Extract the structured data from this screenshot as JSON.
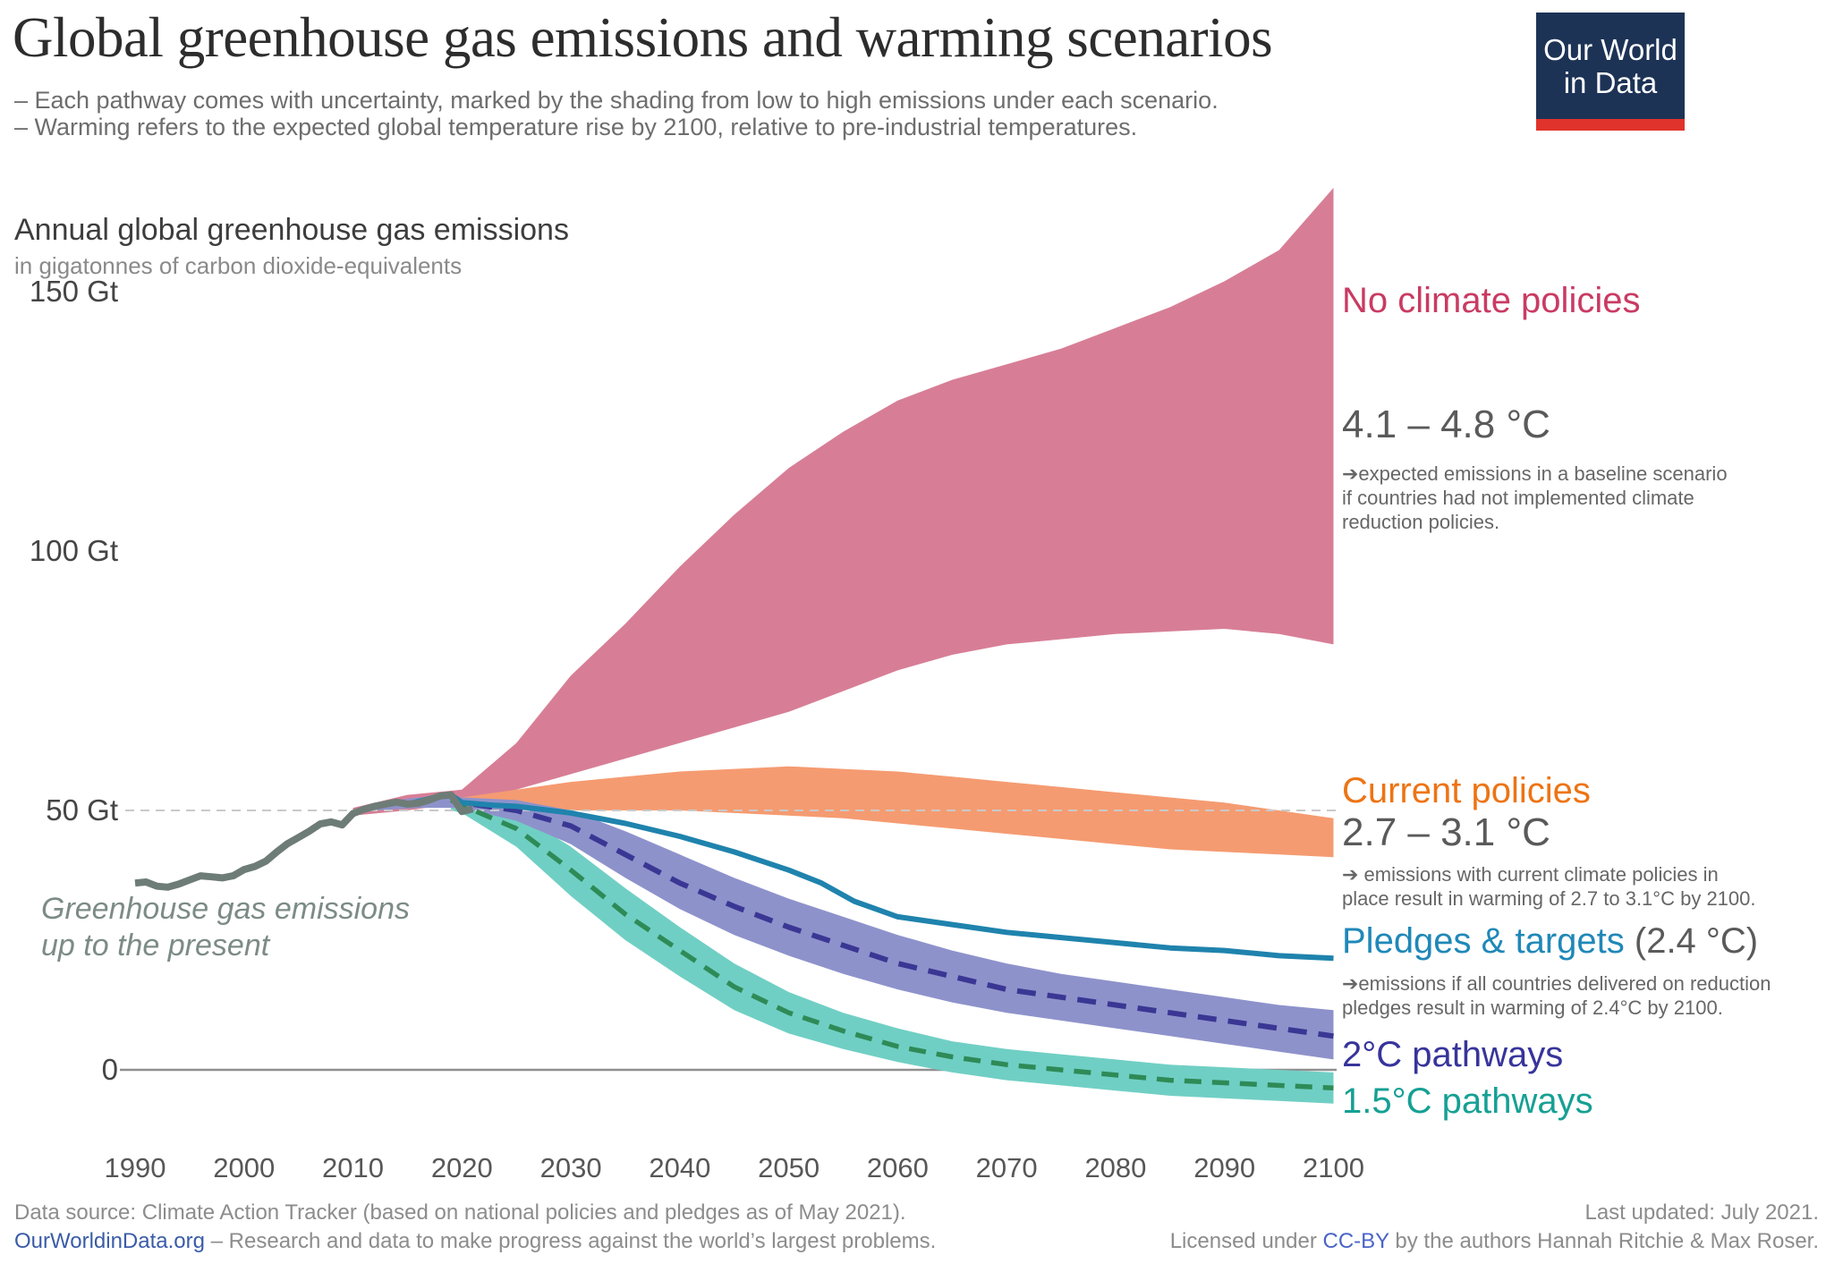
{
  "header": {
    "title": "Global greenhouse gas emissions and warming scenarios",
    "subtitle_lines": [
      "– Each pathway comes with uncertainty, marked by the shading from low to high emissions under each scenario.",
      "– Warming refers to the expected global temperature rise by 2100, relative to pre-industrial temperatures."
    ],
    "logo": {
      "line1": "Our World",
      "line2": "in Data",
      "bg_color": "#1d3356",
      "bar_color": "#e0332b"
    }
  },
  "chart": {
    "axis_heading": "Annual global greenhouse gas emissions",
    "axis_subheading": "in gigatonnes of carbon dioxide-equivalents",
    "history_annotation": "Greenhouse gas emissions\nup to the present",
    "scenarios": {
      "no_policies": {
        "label": "No climate policies",
        "temp": "4.1 – 4.8 °C",
        "note": "➔expected emissions in a baseline scenario\nif countries had not implemented climate\nreduction policies.",
        "color": "#c93b63"
      },
      "current_policies": {
        "label": "Current policies",
        "temp": "2.7 – 3.1 °C",
        "note": "➔ emissions with current climate policies in\nplace result in warming of 2.7 to 3.1°C by 2100.",
        "color": "#ed7414"
      },
      "pledges": {
        "label": "Pledges & targets",
        "temp": "(2.4 °C)",
        "note": "➔emissions if all countries delivered on reduction\npledges result in warming of 2.4°C by 2100.",
        "color": "#2088b8"
      },
      "two_degree": {
        "label": "2°C pathways",
        "color": "#37349b"
      },
      "one_five_degree": {
        "label": "1.5°C pathways",
        "color": "#16a094"
      }
    }
  },
  "chart_data": {
    "type": "area",
    "title": "Annual global greenhouse gas emissions",
    "ylabel": "gigatonnes of carbon dioxide-equivalents",
    "ylim": [
      -10,
      175
    ],
    "y_ticks": [
      {
        "value": 150,
        "label": "150 Gt"
      },
      {
        "value": 100,
        "label": "100 Gt"
      },
      {
        "value": 50,
        "label": "50 Gt"
      },
      {
        "value": 0,
        "label": "0"
      }
    ],
    "x_ticks": [
      1990,
      2000,
      2010,
      2020,
      2030,
      2040,
      2050,
      2060,
      2070,
      2080,
      2090,
      2100
    ],
    "gridline_value": 50,
    "series": [
      {
        "name": "No climate policies (range 4.1–4.8 °C)",
        "kind": "band",
        "color": "#d77e96",
        "points": [
          [
            2010,
            49,
            50.5
          ],
          [
            2015,
            50,
            53
          ],
          [
            2020,
            51.5,
            54
          ],
          [
            2025,
            54,
            63
          ],
          [
            2030,
            57,
            76
          ],
          [
            2035,
            60,
            86
          ],
          [
            2040,
            63,
            97
          ],
          [
            2045,
            66,
            107
          ],
          [
            2050,
            69,
            116
          ],
          [
            2055,
            73,
            123
          ],
          [
            2060,
            77,
            129
          ],
          [
            2065,
            80,
            133
          ],
          [
            2070,
            82,
            136
          ],
          [
            2075,
            83,
            139
          ],
          [
            2080,
            84,
            143
          ],
          [
            2085,
            84.5,
            147
          ],
          [
            2090,
            85,
            152
          ],
          [
            2095,
            84,
            158
          ],
          [
            2100,
            82,
            170
          ]
        ]
      },
      {
        "name": "Current policies (range 2.7–3.1 °C)",
        "kind": "band",
        "color": "#f59b71",
        "points": [
          [
            2020,
            51,
            52.5
          ],
          [
            2025,
            50.5,
            54
          ],
          [
            2030,
            50,
            55.5
          ],
          [
            2035,
            50,
            56.5
          ],
          [
            2040,
            50,
            57.5
          ],
          [
            2045,
            49.5,
            58
          ],
          [
            2050,
            49,
            58.5
          ],
          [
            2055,
            48.5,
            58
          ],
          [
            2060,
            47.5,
            57.5
          ],
          [
            2065,
            46.5,
            56.5
          ],
          [
            2070,
            45.5,
            55.5
          ],
          [
            2075,
            44.5,
            54.5
          ],
          [
            2080,
            43.5,
            53.5
          ],
          [
            2085,
            42.5,
            52.5
          ],
          [
            2090,
            42,
            51.5
          ],
          [
            2095,
            41.5,
            50
          ],
          [
            2100,
            41,
            48.5
          ]
        ]
      },
      {
        "name": "1.5°C pathways band",
        "kind": "band",
        "color": "#70cfc4",
        "points": [
          [
            2019,
            50,
            52
          ],
          [
            2020,
            49.5,
            52
          ],
          [
            2025,
            43,
            49.5
          ],
          [
            2030,
            33.5,
            43
          ],
          [
            2035,
            25,
            35
          ],
          [
            2040,
            18,
            27.5
          ],
          [
            2045,
            11.5,
            20.5
          ],
          [
            2050,
            7,
            15
          ],
          [
            2055,
            4,
            11
          ],
          [
            2060,
            1.5,
            8
          ],
          [
            2065,
            -0.5,
            5.5
          ],
          [
            2070,
            -2,
            4
          ],
          [
            2075,
            -3,
            3
          ],
          [
            2080,
            -4,
            2
          ],
          [
            2085,
            -5,
            1
          ],
          [
            2090,
            -5.5,
            0.5
          ],
          [
            2095,
            -6,
            0
          ],
          [
            2100,
            -6.5,
            -0.5
          ]
        ]
      },
      {
        "name": "2°C pathways band",
        "kind": "band",
        "color": "#8e92cb",
        "points": [
          [
            2012,
            50,
            51.5
          ],
          [
            2016,
            50.5,
            52.5
          ],
          [
            2020,
            50.5,
            52.5
          ],
          [
            2025,
            48,
            52
          ],
          [
            2030,
            43.5,
            50
          ],
          [
            2035,
            37,
            46
          ],
          [
            2040,
            31,
            41.5
          ],
          [
            2045,
            26,
            37
          ],
          [
            2050,
            22,
            33
          ],
          [
            2055,
            18.5,
            29.5
          ],
          [
            2060,
            15.5,
            26
          ],
          [
            2065,
            13,
            23
          ],
          [
            2070,
            11,
            20.5
          ],
          [
            2075,
            9.5,
            18.5
          ],
          [
            2080,
            8,
            17
          ],
          [
            2085,
            6.5,
            15.5
          ],
          [
            2090,
            5,
            14
          ],
          [
            2095,
            3.5,
            12.5
          ],
          [
            2100,
            2,
            11.5
          ]
        ]
      },
      {
        "name": "2°C pathways (median)",
        "kind": "line",
        "color": "#3a3794",
        "width": 6,
        "dash": "21 13",
        "points": [
          [
            2013,
            51.4
          ],
          [
            2016,
            51.6
          ],
          [
            2019,
            53
          ],
          [
            2020,
            51.5
          ],
          [
            2025,
            50
          ],
          [
            2030,
            47
          ],
          [
            2035,
            41.5
          ],
          [
            2040,
            36
          ],
          [
            2045,
            31.5
          ],
          [
            2050,
            27.5
          ],
          [
            2055,
            24
          ],
          [
            2060,
            20.5
          ],
          [
            2065,
            18
          ],
          [
            2070,
            15.5
          ],
          [
            2075,
            14
          ],
          [
            2080,
            12.5
          ],
          [
            2085,
            11
          ],
          [
            2090,
            9.5
          ],
          [
            2095,
            8
          ],
          [
            2100,
            6.5
          ]
        ]
      },
      {
        "name": "1.5°C pathways (median)",
        "kind": "line",
        "color": "#2e8b57",
        "width": 5.5,
        "dash": "19 12",
        "points": [
          [
            2019,
            52
          ],
          [
            2020,
            51
          ],
          [
            2025,
            46.5
          ],
          [
            2030,
            38.5
          ],
          [
            2035,
            30
          ],
          [
            2040,
            23
          ],
          [
            2045,
            16
          ],
          [
            2050,
            11
          ],
          [
            2055,
            7.5
          ],
          [
            2060,
            4.5
          ],
          [
            2065,
            2.5
          ],
          [
            2070,
            1
          ],
          [
            2075,
            0
          ],
          [
            2080,
            -1
          ],
          [
            2085,
            -2
          ],
          [
            2090,
            -2.5
          ],
          [
            2095,
            -3
          ],
          [
            2100,
            -3.5
          ]
        ]
      },
      {
        "name": "Pledges & targets (2.4 °C)",
        "kind": "line",
        "color": "#1f83ad",
        "width": 6,
        "dash": null,
        "points": [
          [
            2015,
            51.2
          ],
          [
            2018,
            52.8
          ],
          [
            2019,
            53
          ],
          [
            2020,
            51.5
          ],
          [
            2023,
            51
          ],
          [
            2025,
            50.8
          ],
          [
            2030,
            49.5
          ],
          [
            2035,
            47.5
          ],
          [
            2040,
            45
          ],
          [
            2045,
            42
          ],
          [
            2050,
            38.5
          ],
          [
            2053,
            36
          ],
          [
            2056,
            32.5
          ],
          [
            2060,
            29.5
          ],
          [
            2065,
            28
          ],
          [
            2070,
            26.5
          ],
          [
            2075,
            25.5
          ],
          [
            2080,
            24.5
          ],
          [
            2085,
            23.5
          ],
          [
            2090,
            23
          ],
          [
            2095,
            22
          ],
          [
            2100,
            21.5
          ]
        ]
      },
      {
        "name": "Greenhouse gas emissions up to the present",
        "kind": "line",
        "color": "#6e7c77",
        "width": 8,
        "dash": null,
        "points": [
          [
            1990,
            36
          ],
          [
            1991,
            36.2
          ],
          [
            1992,
            35.4
          ],
          [
            1993,
            35.2
          ],
          [
            1994,
            35.8
          ],
          [
            1995,
            36.6
          ],
          [
            1996,
            37.4
          ],
          [
            1997,
            37.2
          ],
          [
            1998,
            37
          ],
          [
            1999,
            37.4
          ],
          [
            2000,
            38.6
          ],
          [
            2001,
            39.2
          ],
          [
            2002,
            40.2
          ],
          [
            2003,
            42
          ],
          [
            2004,
            43.6
          ],
          [
            2005,
            44.8
          ],
          [
            2006,
            46
          ],
          [
            2007,
            47.4
          ],
          [
            2008,
            47.8
          ],
          [
            2009,
            47.2
          ],
          [
            2010,
            49.4
          ],
          [
            2011,
            50.2
          ],
          [
            2012,
            50.8
          ],
          [
            2013,
            51.2
          ],
          [
            2014,
            51.6
          ],
          [
            2015,
            51.2
          ],
          [
            2016,
            51.4
          ],
          [
            2017,
            52
          ],
          [
            2018,
            52.8
          ],
          [
            2019,
            53
          ],
          [
            2020,
            49.8
          ],
          [
            2021,
            50.3
          ]
        ]
      }
    ]
  },
  "footer": {
    "source_line": "Data source: Climate Action Tracker (based on national policies and pledges as of May 2021).",
    "owid_link": "OurWorldinData.org",
    "owid_rest": " – Research and data to make progress against the world’s largest problems.",
    "updated_line": "Last updated: July 2021.",
    "license_prefix": "Licensed under ",
    "license_link": "CC-BY",
    "license_suffix": " by the authors Hannah Ritchie & Max Roser."
  }
}
